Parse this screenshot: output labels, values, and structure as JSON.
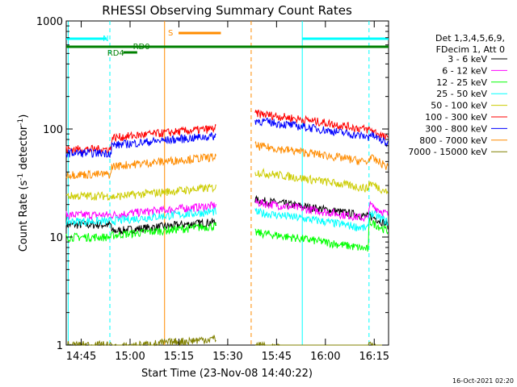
{
  "chart_data": {
    "type": "line",
    "title": "RHESSI Observing Summary Count Rates",
    "xlabel": "Start Time (23-Nov-08 14:40:22)",
    "ylabel_main": "Count Rate (s",
    "ylabel_sup1": "-1",
    "ylabel_mid": " detector",
    "ylabel_sup2": "-1",
    "ylabel_end": ")",
    "yscale": "log",
    "ylim": [
      1,
      1000
    ],
    "xlim_minutes": [
      0,
      99
    ],
    "x_ticks": [
      "14:45",
      "15:00",
      "15:15",
      "15:30",
      "15:45",
      "16:00",
      "16:15"
    ],
    "y_ticks": [
      "1",
      "10",
      "100",
      "1000"
    ],
    "legend_header": [
      "Det 1,3,4,5,6,9,",
      "FDecim 1, Att 0"
    ],
    "legend_position": "right",
    "timestamp": "16-Oct-2021 02:20",
    "flags": {
      "N": {
        "label": "N",
        "color": "#00ffff"
      },
      "RD0": {
        "label": "RD0",
        "color": "#008000"
      },
      "RD4": {
        "label": "RD4",
        "color": "#008000"
      },
      "S": {
        "label": "S",
        "color": "#ff8c00"
      }
    },
    "series": [
      {
        "name": "3 - 6 keV",
        "color": "#000000",
        "level1": 13,
        "level2": 12,
        "level3": 22,
        "level4": 16
      },
      {
        "name": "6 - 12 keV",
        "color": "#ff00ff",
        "level1": 16,
        "level2": 17,
        "level3": 21,
        "level4": 20
      },
      {
        "name": "12 - 25 keV",
        "color": "#00ff00",
        "level1": 10,
        "level2": 11,
        "level3": 11,
        "level4": 14
      },
      {
        "name": "25 - 50 keV",
        "color": "#00ffff",
        "level1": 14,
        "level2": 15,
        "level3": 17,
        "level4": 17
      },
      {
        "name": "50 - 100 keV",
        "color": "#cccc00",
        "level1": 24,
        "level2": 25,
        "level3": 40,
        "level4": 32
      },
      {
        "name": "100 - 300 keV",
        "color": "#ff0000",
        "level1": 65,
        "level2": 88,
        "level3": 140,
        "level4": 100
      },
      {
        "name": "300 - 800 keV",
        "color": "#0000ff",
        "level1": 60,
        "level2": 75,
        "level3": 120,
        "level4": 90
      },
      {
        "name": "800 - 7000 keV",
        "color": "#ff8c00",
        "level1": 38,
        "level2": 48,
        "level3": 70,
        "level4": 55
      },
      {
        "name": "7000 - 15000 keV",
        "color": "#808000",
        "level1": 1,
        "level2": 1,
        "level3": 1,
        "level4": 1
      }
    ]
  }
}
